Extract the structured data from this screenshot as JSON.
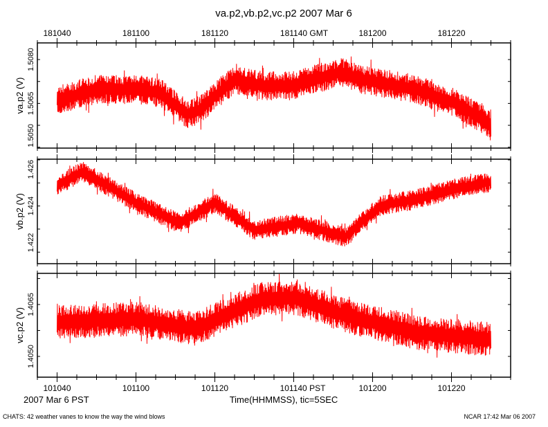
{
  "chart_data": {
    "type": "line",
    "title": "va.p2,vb.p2,vc.p2 2007 Mar 6",
    "top_axis": {
      "ticks": [
        "181040",
        "181100",
        "181120",
        "181140 GMT",
        "181200",
        "181220"
      ]
    },
    "bottom_axis": {
      "ticks": [
        "101040",
        "101100",
        "101120",
        "101140 PST",
        "101200",
        "101220"
      ],
      "xlabel": "Time(HHMMSS), tic=5SEC",
      "date_label": "2007 Mar  6 PST"
    },
    "x_range_seconds_from_101040": [
      -5,
      115
    ],
    "series_color": "#ff0000",
    "panels": [
      {
        "ylabel": "va.p2 (V)",
        "yticks": [
          "1.5080",
          "1.5065",
          "1.5050"
        ],
        "ytick_values": [
          1.508,
          1.5065,
          1.505
        ],
        "ylim": [
          1.50497,
          1.50857
        ],
        "noise_halfwidth": 0.0005,
        "t": [
          0,
          10,
          20,
          26,
          33,
          36,
          45,
          52,
          59,
          72,
          77,
          91,
          101,
          110
        ],
        "values": [
          1.50662,
          1.50698,
          1.50698,
          1.50686,
          1.50614,
          1.50626,
          1.50733,
          1.5071,
          1.5071,
          1.50757,
          1.50733,
          1.50698,
          1.5065,
          1.50579
        ]
      },
      {
        "ylabel": "vb.p2 (V)",
        "yticks": [
          "1.426",
          "1.424",
          "1.422"
        ],
        "ytick_values": [
          1.426,
          1.424,
          1.422
        ],
        "ylim": [
          1.4215,
          1.42603
        ],
        "noise_halfwidth": 0.00045,
        "t": [
          0,
          6.5,
          20,
          31,
          40,
          50,
          61,
          73,
          82,
          91,
          101,
          110
        ],
        "values": [
          1.4249,
          1.42549,
          1.42415,
          1.42325,
          1.42415,
          1.42296,
          1.42325,
          1.42266,
          1.424,
          1.4243,
          1.42475,
          1.42504
        ]
      },
      {
        "ylabel": "vc.p2 (V)",
        "yticks": [
          "1.4065",
          "1.4050"
        ],
        "ytick_values": [
          1.4065,
          1.405
        ],
        "ylim": [
          1.4044,
          1.4074
        ],
        "noise_halfwidth": 0.0005,
        "t": [
          0,
          20,
          35,
          52,
          61,
          73,
          91,
          110
        ],
        "values": [
          1.40599,
          1.40609,
          1.40579,
          1.40668,
          1.40668,
          1.40618,
          1.40569,
          1.40549
        ]
      }
    ]
  },
  "footer": {
    "left": "CHATS: 42 weather vanes to know the way the wind blows",
    "right": "NCAR 17:42 Mar 06 2007"
  }
}
